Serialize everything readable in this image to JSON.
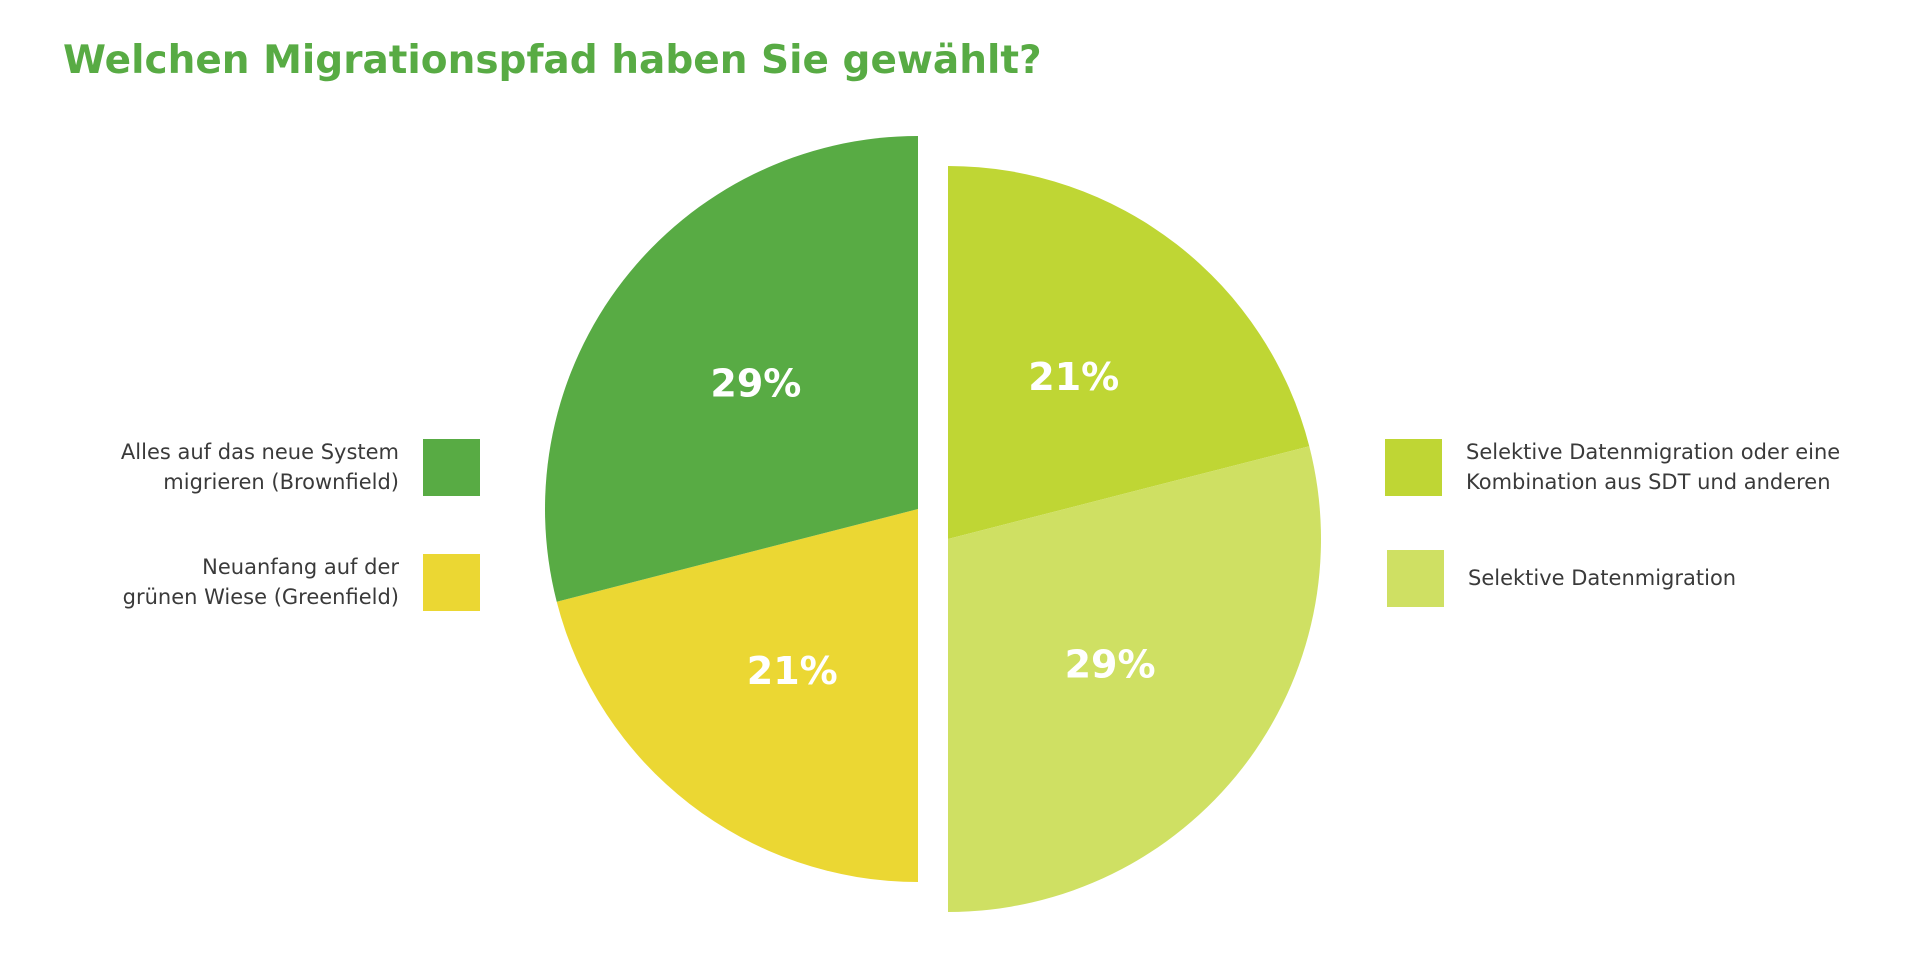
{
  "chart_data": {
    "type": "pie",
    "title": "Welchen Migrationspfad haben Sie gewählt?",
    "slices": [
      {
        "label": "Alles auf das neue System\nmigrieren (Brownfield)",
        "value": 29,
        "display": "29%",
        "color": "#58ab44"
      },
      {
        "label": "Neuanfang auf der\ngrünen Wiese (Greenfield)",
        "value": 21,
        "display": "21%",
        "color": "#ebd733"
      },
      {
        "label": "Selektive Datenmigration oder eine\nKombination aus SDT und anderen",
        "value": 21,
        "display": "21%",
        "color": "#bfd634"
      },
      {
        "label": "Selektive Datenmigration",
        "value": 29,
        "display": "29%",
        "color": "#cfe063"
      }
    ],
    "legend": {
      "left": [
        0,
        1
      ],
      "right": [
        2,
        3
      ]
    },
    "layout_note": "two half-pies separated by a vertical gap; right half slightly offset downward"
  }
}
